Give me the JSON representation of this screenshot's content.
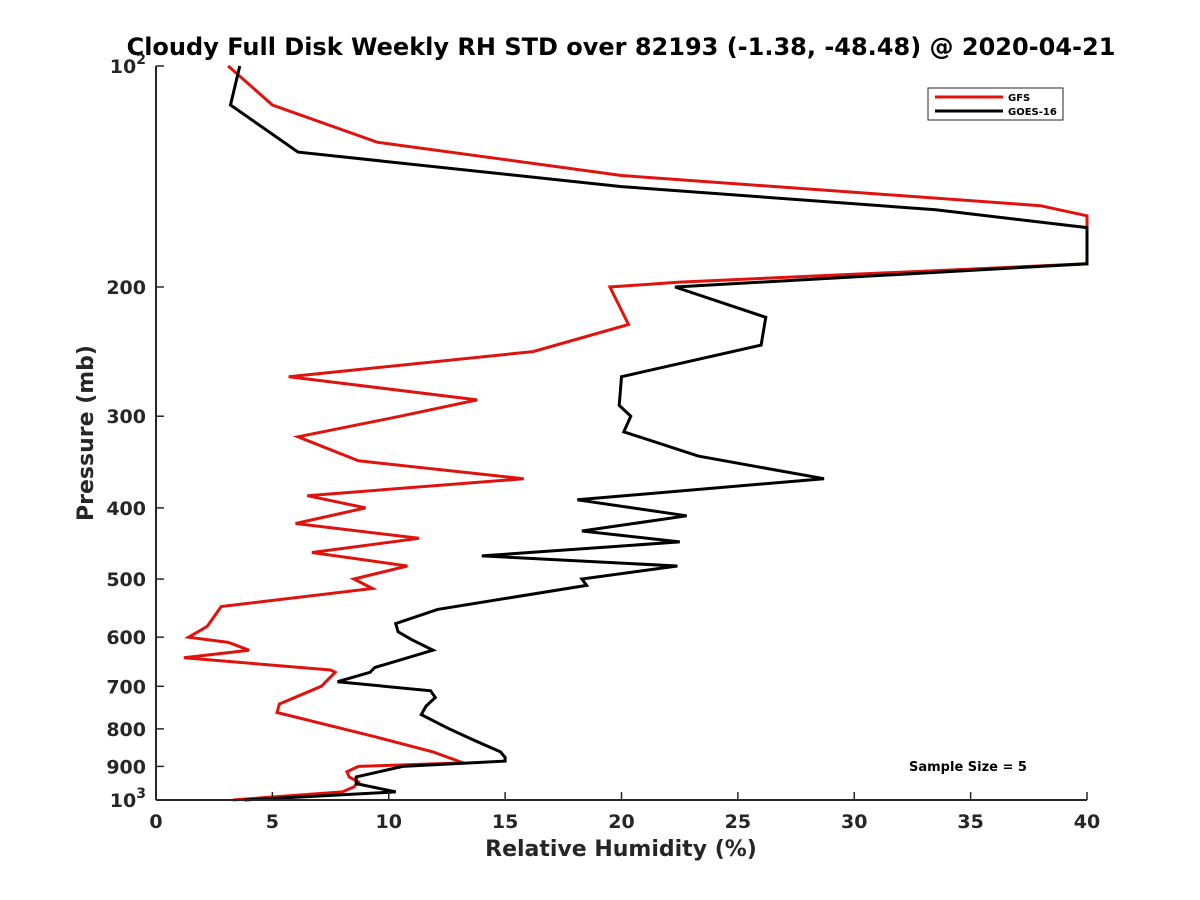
{
  "chart_data": {
    "type": "line",
    "title": "Cloudy Full Disk Weekly RH STD over 82193 (-1.38, -48.48) @ 2020-04-21",
    "xlabel": "Relative Humidity (%)",
    "ylabel": "Pressure (mb)",
    "xlim": [
      0,
      40
    ],
    "ylim": [
      100,
      1000
    ],
    "y_scale": "log",
    "y_reversed": true,
    "x_ticks": [
      "0",
      "5",
      "10",
      "15",
      "20",
      "25",
      "30",
      "35",
      "40"
    ],
    "x_tick_values": [
      0,
      5,
      10,
      15,
      20,
      25,
      30,
      35,
      40
    ],
    "y_ticks": [
      {
        "value": 100,
        "base": "10",
        "exp": "2"
      },
      {
        "value": 200,
        "base": "200",
        "exp": ""
      },
      {
        "value": 300,
        "base": "300",
        "exp": ""
      },
      {
        "value": 400,
        "base": "400",
        "exp": ""
      },
      {
        "value": 500,
        "base": "500",
        "exp": ""
      },
      {
        "value": 600,
        "base": "600",
        "exp": ""
      },
      {
        "value": 700,
        "base": "700",
        "exp": ""
      },
      {
        "value": 800,
        "base": "800",
        "exp": ""
      },
      {
        "value": 900,
        "base": "900",
        "exp": ""
      },
      {
        "value": 1000,
        "base": "10",
        "exp": "3"
      }
    ],
    "legend_position": "top-right",
    "grid": false,
    "annotation": "Sample Size = 5",
    "series": [
      {
        "name": "GFS",
        "color": "#e0120e",
        "points": [
          [
            3.1,
            100
          ],
          [
            5.0,
            113
          ],
          [
            9.5,
            127
          ],
          [
            20,
            141
          ],
          [
            38,
            155
          ],
          [
            40,
            160
          ],
          [
            40,
            186
          ],
          [
            22.5,
            197
          ],
          [
            19.5,
            200
          ],
          [
            20.3,
            225
          ],
          [
            16.2,
            245
          ],
          [
            5.7,
            265
          ],
          [
            13.8,
            285
          ],
          [
            10.5,
            300
          ],
          [
            6.1,
            320
          ],
          [
            8.7,
            345
          ],
          [
            15.8,
            365
          ],
          [
            6.5,
            385
          ],
          [
            9.0,
            400
          ],
          [
            6.0,
            420
          ],
          [
            11.3,
            440
          ],
          [
            6.7,
            460
          ],
          [
            10.8,
            480
          ],
          [
            8.5,
            500
          ],
          [
            9.3,
            515
          ],
          [
            2.8,
            545
          ],
          [
            2.2,
            580
          ],
          [
            1.4,
            600
          ],
          [
            3.1,
            610
          ],
          [
            4.0,
            625
          ],
          [
            1.2,
            640
          ],
          [
            7.5,
            665
          ],
          [
            7.7,
            670
          ],
          [
            7.1,
            700
          ],
          [
            5.3,
            740
          ],
          [
            5.2,
            760
          ],
          [
            9.4,
            820
          ],
          [
            11.9,
            860
          ],
          [
            13.2,
            890
          ],
          [
            8.7,
            900
          ],
          [
            8.2,
            915
          ],
          [
            8.3,
            930
          ],
          [
            8.7,
            945
          ],
          [
            8.5,
            960
          ],
          [
            8.0,
            975
          ],
          [
            3.3,
            1000
          ]
        ]
      },
      {
        "name": "GOES-16",
        "color": "#000000",
        "points": [
          [
            3.6,
            100
          ],
          [
            3.2,
            113
          ],
          [
            6.1,
            131
          ],
          [
            20,
            146
          ],
          [
            33.5,
            157
          ],
          [
            40,
            166
          ],
          [
            40,
            186
          ],
          [
            22.3,
            200
          ],
          [
            26.2,
            220
          ],
          [
            26.0,
            240
          ],
          [
            20.0,
            265
          ],
          [
            19.9,
            290
          ],
          [
            20.4,
            300
          ],
          [
            20.1,
            315
          ],
          [
            23.3,
            340
          ],
          [
            28.7,
            365
          ],
          [
            18.1,
            390
          ],
          [
            22.8,
            410
          ],
          [
            18.3,
            430
          ],
          [
            22.5,
            445
          ],
          [
            14.0,
            465
          ],
          [
            22.4,
            480
          ],
          [
            18.3,
            500
          ],
          [
            18.5,
            510
          ],
          [
            12.1,
            550
          ],
          [
            10.3,
            575
          ],
          [
            10.4,
            590
          ],
          [
            11.0,
            605
          ],
          [
            11.9,
            625
          ],
          [
            9.4,
            660
          ],
          [
            9.2,
            670
          ],
          [
            7.8,
            690
          ],
          [
            11.8,
            710
          ],
          [
            12.0,
            725
          ],
          [
            11.6,
            745
          ],
          [
            11.4,
            765
          ],
          [
            12.6,
            800
          ],
          [
            13.7,
            830
          ],
          [
            14.8,
            860
          ],
          [
            15.0,
            875
          ],
          [
            15.0,
            885
          ],
          [
            10.6,
            900
          ],
          [
            9.6,
            915
          ],
          [
            8.6,
            930
          ],
          [
            8.6,
            950
          ],
          [
            10.3,
            975
          ],
          [
            3.8,
            1000
          ]
        ]
      }
    ]
  }
}
